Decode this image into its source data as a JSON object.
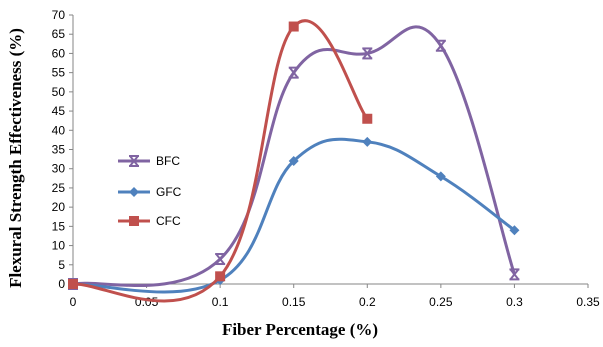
{
  "chart_data": {
    "type": "line",
    "xlabel": "Fiber Percentage (%)",
    "ylabel": "Flexural Strength Effectiveness (%)",
    "xlim": [
      0,
      0.35
    ],
    "ylim": [
      0,
      70
    ],
    "x_ticks": [
      "0",
      "0.05",
      "0.1",
      "0.15",
      "0.2",
      "0.25",
      "0.3",
      "0.35"
    ],
    "y_ticks": [
      "0",
      "5",
      "10",
      "15",
      "20",
      "25",
      "30",
      "35",
      "40",
      "45",
      "50",
      "55",
      "60",
      "65",
      "70"
    ],
    "grid": false,
    "smooth": true,
    "legend_position": "left",
    "series": [
      {
        "name": "BFC",
        "color": "#8064a2",
        "marker": "star",
        "points": [
          [
            0,
            0
          ],
          [
            0.1,
            6.5
          ],
          [
            0.15,
            55
          ],
          [
            0.2,
            60
          ],
          [
            0.25,
            62
          ],
          [
            0.3,
            2.5
          ]
        ]
      },
      {
        "name": "GFC",
        "color": "#4f81bd",
        "marker": "diamond",
        "points": [
          [
            0,
            0
          ],
          [
            0.1,
            1
          ],
          [
            0.15,
            32
          ],
          [
            0.2,
            37
          ],
          [
            0.25,
            28
          ],
          [
            0.3,
            14
          ]
        ]
      },
      {
        "name": "CFC",
        "color": "#c0504d",
        "marker": "square",
        "points": [
          [
            0,
            0
          ],
          [
            0.1,
            2
          ],
          [
            0.15,
            67
          ],
          [
            0.2,
            43
          ]
        ]
      }
    ]
  }
}
